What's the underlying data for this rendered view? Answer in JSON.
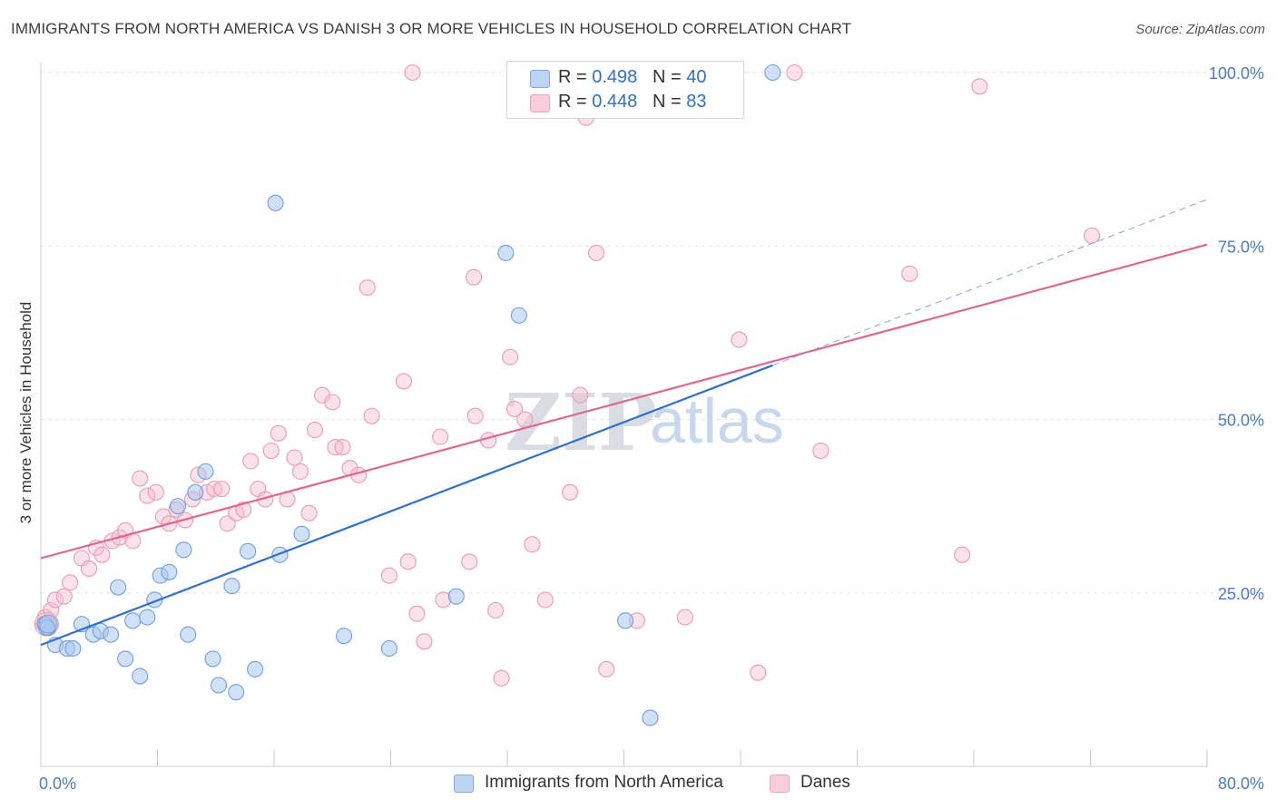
{
  "title": "IMMIGRANTS FROM NORTH AMERICA VS DANISH 3 OR MORE VEHICLES IN HOUSEHOLD CORRELATION CHART",
  "source": "Source: ZipAtlas.com",
  "watermark": {
    "zip": "ZIP",
    "atlas": "atlas"
  },
  "colors": {
    "blue_fill": "#a9c6ef",
    "blue_stroke": "#6f9fe0",
    "blue_line": "#2f6fd0",
    "pink_fill": "#f6bccd",
    "pink_stroke": "#ec9ab4",
    "pink_line": "#e0668f",
    "grid": "#e1e1e1",
    "axis_label": "#4b7ac9"
  },
  "legend": {
    "rows": [
      {
        "r_label": "R = ",
        "r_value": "0.498",
        "n_label": "N = ",
        "n_value": "40"
      },
      {
        "r_label": "R = ",
        "r_value": "0.448",
        "n_label": "N = ",
        "n_value": "83"
      }
    ]
  },
  "bottom_legend": [
    "Immigrants from North America",
    "Danes"
  ],
  "chart_data": {
    "type": "scatter",
    "title": "IMMIGRANTS FROM NORTH AMERICA VS DANISH 3 OR MORE VEHICLES IN HOUSEHOLD CORRELATION CHART",
    "xlabel": "",
    "ylabel": "3 or more Vehicles in Household",
    "xlim": [
      0,
      80
    ],
    "ylim": [
      0,
      100
    ],
    "x_tick_labels": [
      "0.0%",
      "80.0%"
    ],
    "y_ticks": [
      {
        "value": 25,
        "label": "25.0%"
      },
      {
        "value": 50,
        "label": "50.0%"
      },
      {
        "value": 75,
        "label": "75.0%"
      },
      {
        "value": 100,
        "label": "100.0%"
      }
    ],
    "grid": true,
    "legend_position": "top-center",
    "series": [
      {
        "name": "Immigrants from North America",
        "r": 0.498,
        "n": 40,
        "trend": {
          "x": [
            0,
            50.2
          ],
          "y": [
            17.5,
            57.8
          ]
        },
        "trend_extension": {
          "x": [
            50.2,
            80
          ],
          "y": [
            57.8,
            81.7
          ]
        },
        "points": [
          [
            0.3,
            20.5
          ],
          [
            0.5,
            20.0
          ],
          [
            1.0,
            17.5
          ],
          [
            1.8,
            17.0
          ],
          [
            2.2,
            17.0
          ],
          [
            2.8,
            20.5
          ],
          [
            3.6,
            19.0
          ],
          [
            4.1,
            19.5
          ],
          [
            4.8,
            19.0
          ],
          [
            5.3,
            25.8
          ],
          [
            5.8,
            15.5
          ],
          [
            6.3,
            21.0
          ],
          [
            6.8,
            13.0
          ],
          [
            7.3,
            21.5
          ],
          [
            7.8,
            24.0
          ],
          [
            8.2,
            27.5
          ],
          [
            8.8,
            28.0
          ],
          [
            9.4,
            37.5
          ],
          [
            9.8,
            31.2
          ],
          [
            10.1,
            19.0
          ],
          [
            10.6,
            39.5
          ],
          [
            11.3,
            42.5
          ],
          [
            11.8,
            15.5
          ],
          [
            12.2,
            11.7
          ],
          [
            13.1,
            26.0
          ],
          [
            13.4,
            10.7
          ],
          [
            14.2,
            31.0
          ],
          [
            14.7,
            14.0
          ],
          [
            16.1,
            81.2
          ],
          [
            16.4,
            30.5
          ],
          [
            17.9,
            33.5
          ],
          [
            20.8,
            18.8
          ],
          [
            23.9,
            17.0
          ],
          [
            28.5,
            24.5
          ],
          [
            31.9,
            74.0
          ],
          [
            32.8,
            65.0
          ],
          [
            40.1,
            21.0
          ],
          [
            41.8,
            7.0
          ],
          [
            50.2,
            100.0
          ],
          [
            0.4,
            20.0
          ]
        ]
      },
      {
        "name": "Danes",
        "r": 0.448,
        "n": 83,
        "trend": {
          "x": [
            0,
            80
          ],
          "y": [
            30.0,
            75.2
          ]
        },
        "points": [
          [
            0.3,
            21.5
          ],
          [
            0.5,
            20.5
          ],
          [
            0.7,
            22.5
          ],
          [
            1.0,
            24.0
          ],
          [
            1.6,
            24.5
          ],
          [
            2.0,
            26.5
          ],
          [
            2.8,
            30.0
          ],
          [
            3.3,
            28.5
          ],
          [
            3.8,
            31.5
          ],
          [
            4.2,
            30.5
          ],
          [
            4.9,
            32.5
          ],
          [
            5.4,
            33.0
          ],
          [
            5.8,
            34.0
          ],
          [
            6.3,
            32.5
          ],
          [
            6.8,
            41.5
          ],
          [
            7.3,
            39.0
          ],
          [
            7.9,
            39.5
          ],
          [
            8.4,
            36.0
          ],
          [
            8.8,
            35.0
          ],
          [
            9.3,
            37.0
          ],
          [
            9.9,
            35.5
          ],
          [
            10.4,
            38.5
          ],
          [
            10.8,
            42.0
          ],
          [
            11.4,
            39.5
          ],
          [
            11.9,
            40.0
          ],
          [
            12.4,
            40.0
          ],
          [
            12.8,
            35.0
          ],
          [
            13.4,
            36.5
          ],
          [
            13.9,
            37.0
          ],
          [
            14.4,
            44.0
          ],
          [
            14.9,
            40.0
          ],
          [
            15.4,
            38.5
          ],
          [
            15.8,
            45.5
          ],
          [
            16.3,
            48.0
          ],
          [
            16.9,
            38.5
          ],
          [
            17.4,
            44.5
          ],
          [
            17.8,
            42.5
          ],
          [
            18.4,
            36.5
          ],
          [
            18.8,
            48.5
          ],
          [
            19.3,
            53.5
          ],
          [
            20.0,
            52.5
          ],
          [
            20.2,
            46.0
          ],
          [
            20.7,
            46.0
          ],
          [
            21.2,
            43.0
          ],
          [
            21.8,
            42.0
          ],
          [
            22.4,
            69.0
          ],
          [
            22.7,
            50.5
          ],
          [
            23.9,
            27.5
          ],
          [
            24.9,
            55.5
          ],
          [
            25.2,
            29.5
          ],
          [
            25.5,
            100.0
          ],
          [
            25.8,
            22.0
          ],
          [
            26.3,
            18.0
          ],
          [
            27.4,
            47.5
          ],
          [
            27.6,
            24.0
          ],
          [
            29.4,
            29.5
          ],
          [
            29.7,
            70.5
          ],
          [
            29.8,
            50.5
          ],
          [
            30.7,
            47.0
          ],
          [
            31.2,
            22.5
          ],
          [
            31.6,
            12.7
          ],
          [
            32.2,
            59.0
          ],
          [
            32.5,
            51.5
          ],
          [
            33.2,
            50.0
          ],
          [
            33.7,
            32.0
          ],
          [
            34.6,
            24.0
          ],
          [
            36.3,
            39.5
          ],
          [
            37.0,
            53.5
          ],
          [
            37.4,
            93.5
          ],
          [
            38.1,
            74.0
          ],
          [
            38.8,
            14.0
          ],
          [
            40.9,
            21.0
          ],
          [
            44.2,
            21.5
          ],
          [
            44.9,
            100.0
          ],
          [
            47.9,
            61.5
          ],
          [
            49.2,
            13.5
          ],
          [
            51.7,
            100.0
          ],
          [
            53.5,
            45.5
          ],
          [
            59.6,
            71.0
          ],
          [
            63.2,
            30.5
          ],
          [
            64.4,
            98.0
          ],
          [
            72.1,
            76.5
          ],
          [
            0.2,
            20.5
          ]
        ]
      }
    ]
  }
}
